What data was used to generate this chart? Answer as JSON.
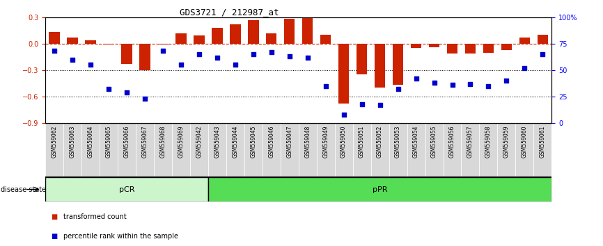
{
  "title": "GDS3721 / 212987_at",
  "samples": [
    "GSM559062",
    "GSM559063",
    "GSM559064",
    "GSM559065",
    "GSM559066",
    "GSM559067",
    "GSM559068",
    "GSM559069",
    "GSM559042",
    "GSM559043",
    "GSM559044",
    "GSM559045",
    "GSM559046",
    "GSM559047",
    "GSM559048",
    "GSM559049",
    "GSM559050",
    "GSM559051",
    "GSM559052",
    "GSM559053",
    "GSM559054",
    "GSM559055",
    "GSM559056",
    "GSM559057",
    "GSM559058",
    "GSM559059",
    "GSM559060",
    "GSM559061"
  ],
  "transformed_count": [
    0.13,
    0.07,
    0.04,
    -0.01,
    -0.23,
    -0.3,
    -0.01,
    0.12,
    0.09,
    0.18,
    0.22,
    0.27,
    0.12,
    0.28,
    0.3,
    0.1,
    -0.68,
    -0.35,
    -0.5,
    -0.47,
    -0.05,
    -0.04,
    -0.11,
    -0.11,
    -0.1,
    -0.07,
    0.07,
    0.1
  ],
  "percentile_rank": [
    68,
    60,
    55,
    32,
    29,
    23,
    68,
    55,
    65,
    62,
    55,
    65,
    67,
    63,
    62,
    35,
    8,
    18,
    17,
    32,
    42,
    38,
    36,
    37,
    35,
    40,
    52,
    65
  ],
  "pcr_count": 9,
  "ppr_count": 19,
  "group_labels": [
    "pCR",
    "pPR"
  ],
  "bar_color": "#CC2200",
  "dot_color": "#0000CC",
  "ylim_left": [
    -0.9,
    0.3
  ],
  "ylim_right": [
    0,
    100
  ],
  "yticks_left": [
    -0.9,
    -0.6,
    -0.3,
    0.0,
    0.3
  ],
  "yticks_right": [
    0,
    25,
    50,
    75,
    100
  ],
  "ytick_labels_right": [
    "0",
    "25",
    "50",
    "75",
    "100%"
  ],
  "background_color": "#ffffff",
  "dotted_lines": [
    -0.3,
    -0.6
  ],
  "legend_items": [
    "transformed count",
    "percentile rank within the sample"
  ],
  "legend_colors": [
    "#CC2200",
    "#0000CC"
  ],
  "pcr_color": "#ccf5cc",
  "ppr_color": "#55dd55",
  "cell_bg": "#d8d8d8"
}
